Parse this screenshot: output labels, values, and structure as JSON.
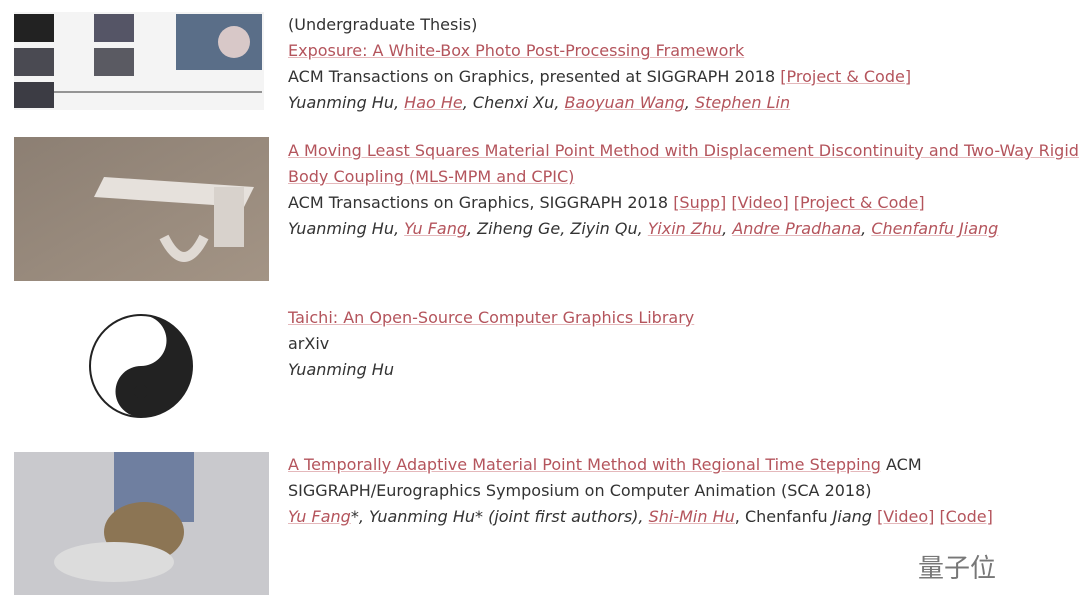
{
  "publications": [
    {
      "lines": [
        [
          {
            "text": "(Undergraduate Thesis)",
            "style": "plain"
          }
        ],
        [
          {
            "text": "Exposure: A White-Box Photo Post-Processing Framework",
            "style": "link"
          }
        ],
        [
          {
            "text": "ACM Transactions on Graphics, presented at SIGGRAPH 2018 ",
            "style": "plain"
          },
          {
            "text": "[Project & Code]",
            "style": "link"
          }
        ],
        [
          {
            "text": "Yuanming Hu",
            "style": "italic"
          },
          {
            "text": ", ",
            "style": "italic"
          },
          {
            "text": "Hao He",
            "style": "italic-link"
          },
          {
            "text": ", Chenxi Xu, ",
            "style": "italic"
          },
          {
            "text": "Baoyuan Wang",
            "style": "italic-link"
          },
          {
            "text": ", ",
            "style": "italic"
          },
          {
            "text": "Stephen Lin",
            "style": "italic-link"
          }
        ]
      ]
    },
    {
      "lines": [
        [
          {
            "text": "A Moving Least Squares Material Point Method with Displacement Discontinuity and Two-Way Rigid",
            "style": "link"
          }
        ],
        [
          {
            "text": "Body Coupling (MLS-MPM and CPIC)",
            "style": "link"
          }
        ],
        [
          {
            "text": "ACM Transactions on Graphics, SIGGRAPH 2018 ",
            "style": "plain"
          },
          {
            "text": "[Supp]",
            "style": "link"
          },
          {
            "text": " ",
            "style": "plain"
          },
          {
            "text": "[Video]",
            "style": "link"
          },
          {
            "text": " ",
            "style": "plain"
          },
          {
            "text": "[Project & Code]",
            "style": "link"
          }
        ],
        [
          {
            "text": "Yuanming Hu, ",
            "style": "italic"
          },
          {
            "text": "Yu Fang",
            "style": "italic-link"
          },
          {
            "text": ", Ziheng Ge, Ziyin Qu, ",
            "style": "italic"
          },
          {
            "text": "Yixin Zhu",
            "style": "italic-link"
          },
          {
            "text": ", ",
            "style": "italic"
          },
          {
            "text": "Andre Pradhana",
            "style": "italic-link"
          },
          {
            "text": ", ",
            "style": "italic"
          },
          {
            "text": "Chenfanfu Jiang",
            "style": "italic-link"
          }
        ]
      ]
    },
    {
      "lines": [
        [
          {
            "text": "Taichi: An Open-Source Computer Graphics Library",
            "style": "link"
          }
        ],
        [
          {
            "text": "arXiv",
            "style": "plain"
          }
        ],
        [
          {
            "text": "Yuanming Hu",
            "style": "italic"
          }
        ]
      ]
    },
    {
      "lines": [
        [
          {
            "text": "A Temporally Adaptive Material Point Method with Regional Time Stepping",
            "style": "link"
          },
          {
            "text": " ACM",
            "style": "plain"
          }
        ],
        [
          {
            "text": "SIGGRAPH/Eurographics Symposium on Computer Animation (SCA 2018)",
            "style": "plain"
          }
        ],
        [
          {
            "text": "Yu Fang",
            "style": "italic-link"
          },
          {
            "text": "*, Yuanming Hu* (joint first authors), ",
            "style": "italic"
          },
          {
            "text": "Shi-Min Hu",
            "style": "italic-link"
          },
          {
            "text": ", Chenfanfu ",
            "style": "plain"
          },
          {
            "text": "Jiang",
            "style": "italic"
          },
          {
            "text": " ",
            "style": "plain"
          },
          {
            "text": "[Video]",
            "style": "link"
          },
          {
            "text": " ",
            "style": "plain"
          },
          {
            "text": "[Code]",
            "style": "link"
          }
        ]
      ]
    }
  ],
  "watermark": "量子位"
}
